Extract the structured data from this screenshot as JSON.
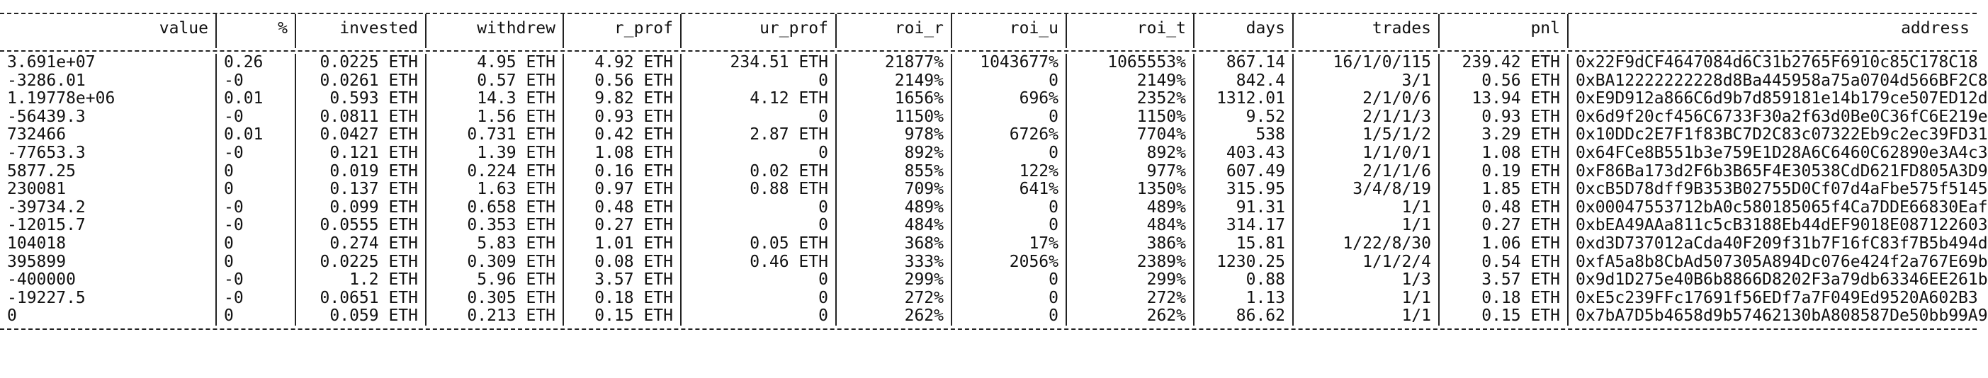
{
  "table": {
    "columns": [
      {
        "key": "value",
        "label": "value",
        "align": "right"
      },
      {
        "key": "pct",
        "label": "%",
        "align": "right"
      },
      {
        "key": "invested",
        "label": "invested",
        "align": "right"
      },
      {
        "key": "withdrew",
        "label": "withdrew",
        "align": "right"
      },
      {
        "key": "r_prof",
        "label": "r_prof",
        "align": "right"
      },
      {
        "key": "ur_prof",
        "label": "ur_prof",
        "align": "right"
      },
      {
        "key": "roi_r",
        "label": "roi_r",
        "align": "right"
      },
      {
        "key": "roi_u",
        "label": "roi_u",
        "align": "right"
      },
      {
        "key": "roi_t",
        "label": "roi_t",
        "align": "right"
      },
      {
        "key": "days",
        "label": "days",
        "align": "right"
      },
      {
        "key": "trades",
        "label": "trades",
        "align": "right"
      },
      {
        "key": "pnl",
        "label": "pnl",
        "align": "right"
      },
      {
        "key": "address",
        "label": "address",
        "align": "right"
      }
    ],
    "rows": [
      {
        "value": "3.691e+07",
        "pct": "0.26",
        "invested": "0.0225 ETH",
        "withdrew": "4.95 ETH",
        "r_prof": "4.92 ETH",
        "ur_prof": "234.51 ETH",
        "roi_r": "21877%",
        "roi_u": "1043677%",
        "roi_t": "1065553%",
        "days": "867.14",
        "trades": "16/1/0/115",
        "pnl": "239.42 ETH",
        "address": "0x22F9dCF4647084d6C31b2765F6910c85C178C18"
      },
      {
        "value": "-3286.01",
        "pct": "-0",
        "invested": "0.0261 ETH",
        "withdrew": "0.57 ETH",
        "r_prof": "0.56 ETH",
        "ur_prof": "0",
        "roi_r": "2149%",
        "roi_u": "0",
        "roi_t": "2149%",
        "days": "842.4",
        "trades": "3/1",
        "pnl": "0.56 ETH",
        "address": "0xBA12222222228d8Ba445958a75a0704d566BF2C8"
      },
      {
        "value": "1.19778e+06",
        "pct": "0.01",
        "invested": "0.593 ETH",
        "withdrew": "14.3 ETH",
        "r_prof": "9.82 ETH",
        "ur_prof": "4.12 ETH",
        "roi_r": "1656%",
        "roi_u": "696%",
        "roi_t": "2352%",
        "days": "1312.01",
        "trades": "2/1/0/6",
        "pnl": "13.94 ETH",
        "address": "0xE9D912a866C6d9b7d859181e14b179ce507ED12d"
      },
      {
        "value": "-56439.3",
        "pct": "-0",
        "invested": "0.0811 ETH",
        "withdrew": "1.56 ETH",
        "r_prof": "0.93 ETH",
        "ur_prof": "0",
        "roi_r": "1150%",
        "roi_u": "0",
        "roi_t": "1150%",
        "days": "9.52",
        "trades": "2/1/1/3",
        "pnl": "0.93 ETH",
        "address": "0x6d9f20cf456C6733F30a2f63d0Be0C36fC6E219e"
      },
      {
        "value": "732466",
        "pct": "0.01",
        "invested": "0.0427 ETH",
        "withdrew": "0.731 ETH",
        "r_prof": "0.42 ETH",
        "ur_prof": "2.87 ETH",
        "roi_r": "978%",
        "roi_u": "6726%",
        "roi_t": "7704%",
        "days": "538",
        "trades": "1/5/1/2",
        "pnl": "3.29 ETH",
        "address": "0x10DDc2E7F1f83BC7D2C83c07322Eb9c2ec39FD31"
      },
      {
        "value": "-77653.3",
        "pct": "-0",
        "invested": "0.121 ETH",
        "withdrew": "1.39 ETH",
        "r_prof": "1.08 ETH",
        "ur_prof": "0",
        "roi_r": "892%",
        "roi_u": "0",
        "roi_t": "892%",
        "days": "403.43",
        "trades": "1/1/0/1",
        "pnl": "1.08 ETH",
        "address": "0x64FCe8B551b3e759E1D28A6C6460C62890e3A4c3"
      },
      {
        "value": "5877.25",
        "pct": "0",
        "invested": "0.019 ETH",
        "withdrew": "0.224 ETH",
        "r_prof": "0.16 ETH",
        "ur_prof": "0.02 ETH",
        "roi_r": "855%",
        "roi_u": "122%",
        "roi_t": "977%",
        "days": "607.49",
        "trades": "2/1/1/6",
        "pnl": "0.19 ETH",
        "address": "0xF86Ba173d2F6b3B65F4E30538CdD621FD805A3D9"
      },
      {
        "value": "230081",
        "pct": "0",
        "invested": "0.137 ETH",
        "withdrew": "1.63 ETH",
        "r_prof": "0.97 ETH",
        "ur_prof": "0.88 ETH",
        "roi_r": "709%",
        "roi_u": "641%",
        "roi_t": "1350%",
        "days": "315.95",
        "trades": "3/4/8/19",
        "pnl": "1.85 ETH",
        "address": "0xcB5D78dff9B353B02755D0Cf07d4aFbe575f5145"
      },
      {
        "value": "-39734.2",
        "pct": "-0",
        "invested": "0.099 ETH",
        "withdrew": "0.658 ETH",
        "r_prof": "0.48 ETH",
        "ur_prof": "0",
        "roi_r": "489%",
        "roi_u": "0",
        "roi_t": "489%",
        "days": "91.31",
        "trades": "1/1",
        "pnl": "0.48 ETH",
        "address": "0x00047553712bA0c580185065f4Ca7DDE66830Eaf"
      },
      {
        "value": "-12015.7",
        "pct": "-0",
        "invested": "0.0555 ETH",
        "withdrew": "0.353 ETH",
        "r_prof": "0.27 ETH",
        "ur_prof": "0",
        "roi_r": "484%",
        "roi_u": "0",
        "roi_t": "484%",
        "days": "314.17",
        "trades": "1/1",
        "pnl": "0.27 ETH",
        "address": "0xbEA49AAa811c5cB3188Eb44dEF9018E087122603"
      },
      {
        "value": "104018",
        "pct": "0",
        "invested": "0.274 ETH",
        "withdrew": "5.83 ETH",
        "r_prof": "1.01 ETH",
        "ur_prof": "0.05 ETH",
        "roi_r": "368%",
        "roi_u": "17%",
        "roi_t": "386%",
        "days": "15.81",
        "trades": "1/22/8/30",
        "pnl": "1.06 ETH",
        "address": "0xd3D737012aCda40F209f31b7F16fC83f7B5b494d"
      },
      {
        "value": "395899",
        "pct": "0",
        "invested": "0.0225 ETH",
        "withdrew": "0.309 ETH",
        "r_prof": "0.08 ETH",
        "ur_prof": "0.46 ETH",
        "roi_r": "333%",
        "roi_u": "2056%",
        "roi_t": "2389%",
        "days": "1230.25",
        "trades": "1/1/2/4",
        "pnl": "0.54 ETH",
        "address": "0xfA5a8b8CbAd507305A894Dc076e424f2a767E69b"
      },
      {
        "value": "-400000",
        "pct": "-0",
        "invested": "1.2 ETH",
        "withdrew": "5.96 ETH",
        "r_prof": "3.57 ETH",
        "ur_prof": "0",
        "roi_r": "299%",
        "roi_u": "0",
        "roi_t": "299%",
        "days": "0.88",
        "trades": "1/3",
        "pnl": "3.57 ETH",
        "address": "0x9d1D275e40B6b8866D8202F3a79db63346EE261b"
      },
      {
        "value": "-19227.5",
        "pct": "-0",
        "invested": "0.0651 ETH",
        "withdrew": "0.305 ETH",
        "r_prof": "0.18 ETH",
        "ur_prof": "0",
        "roi_r": "272%",
        "roi_u": "0",
        "roi_t": "272%",
        "days": "1.13",
        "trades": "1/1",
        "pnl": "0.18 ETH",
        "address": "0xE5c239FFc17691f56EDf7a7F049Ed9520A602B3"
      },
      {
        "value": "0",
        "pct": "0",
        "invested": "0.059 ETH",
        "withdrew": "0.213 ETH",
        "r_prof": "0.15 ETH",
        "ur_prof": "0",
        "roi_r": "262%",
        "roi_u": "0",
        "roi_t": "262%",
        "days": "86.62",
        "trades": "1/1",
        "pnl": "0.15 ETH",
        "address": "0x7bA7D5b4658d9b57462130bA808587De50bb99A9"
      }
    ]
  }
}
